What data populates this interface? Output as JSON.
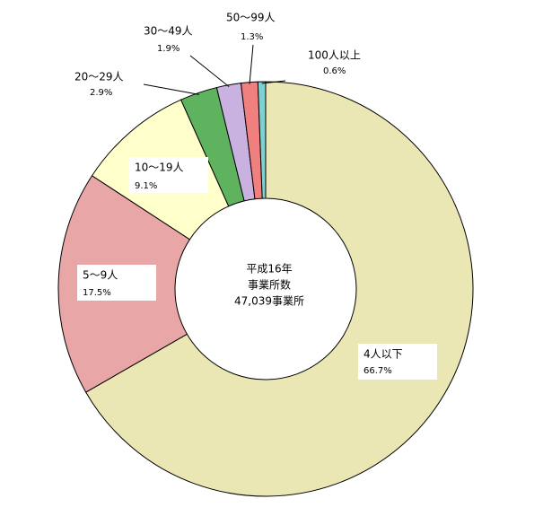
{
  "chart_data": {
    "type": "donut",
    "center_label": [
      "平成16年",
      "事業所数",
      "47,039事業所"
    ],
    "categories": [
      "4人以下",
      "5〜9人",
      "10〜19人",
      "20〜29人",
      "30〜49人",
      "50〜99人",
      "100人以上"
    ],
    "values": [
      66.7,
      17.5,
      9.1,
      2.9,
      1.9,
      1.3,
      0.6
    ],
    "value_labels": [
      "66.7%",
      "17.5%",
      "9.1%",
      "2.9%",
      "1.9%",
      "1.3%",
      "0.6%"
    ],
    "colors": [
      "#ebe7b4",
      "#e9a6a6",
      "#ffffcc",
      "#5fb35f",
      "#c9b2df",
      "#f08080",
      "#7fd0d0"
    ]
  }
}
